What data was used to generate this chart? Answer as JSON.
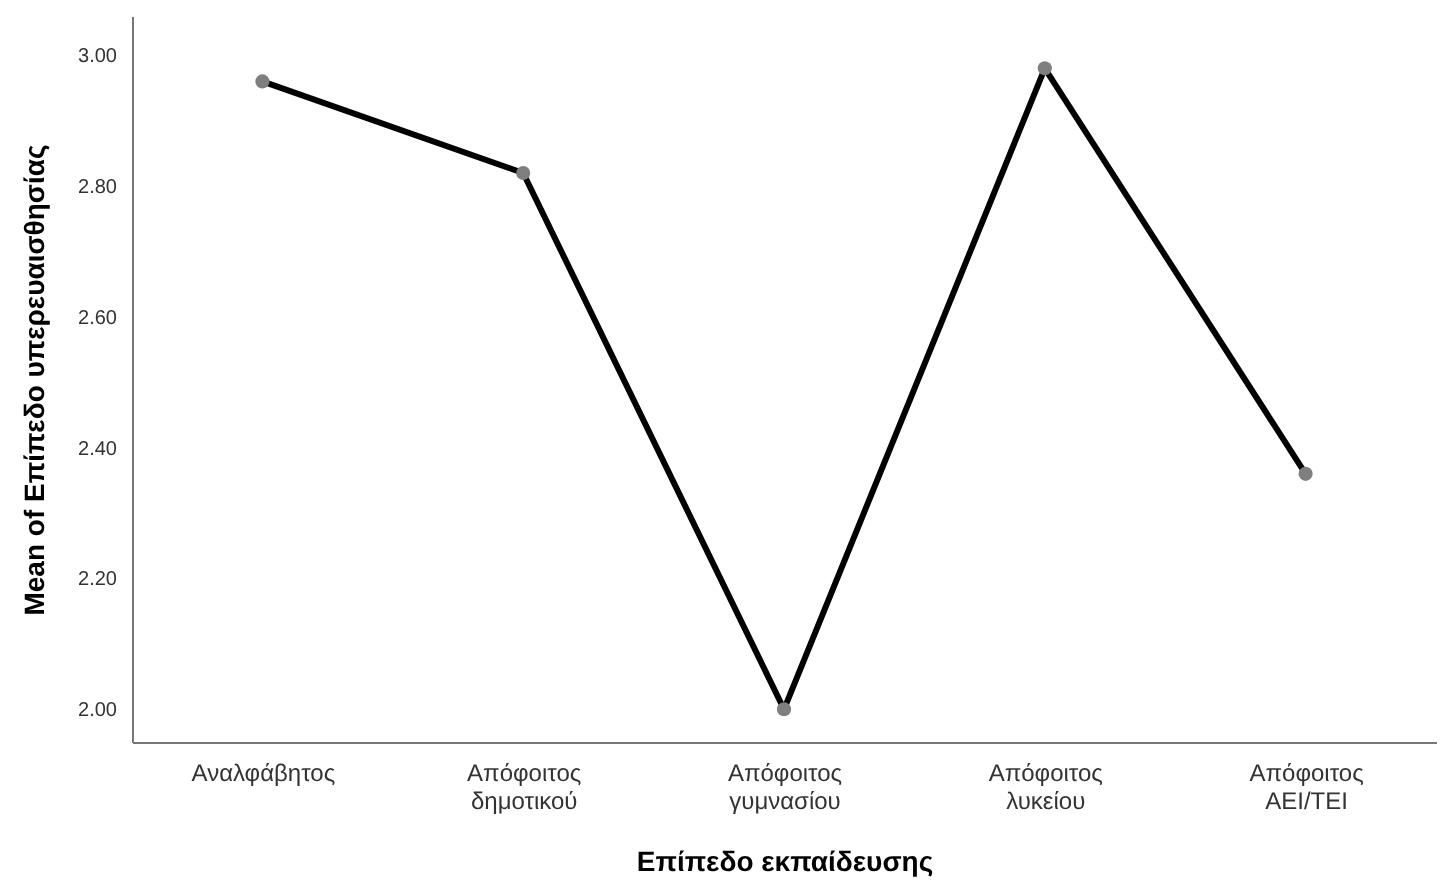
{
  "chart_data": {
    "type": "line",
    "xlabel": "Επίπεδο εκπαίδευσης",
    "ylabel": "Mean of Επίπεδο υπερευαισθησίας",
    "categories": [
      "Αναλφάβητος",
      "Απόφοιτος\nδημοτικού",
      "Απόφοιτος\nγυμνασίου",
      "Απόφοιτος\nλυκείου",
      "Απόφοιτος\nΑΕΙ/ΤΕΙ"
    ],
    "series": [
      {
        "color": "#000000",
        "values": [
          2.96,
          2.82,
          2.0,
          2.98,
          2.36
        ]
      }
    ],
    "ylim": [
      1.95,
      3.06
    ],
    "yticks": [
      {
        "value": 2.0,
        "label": "2.00"
      },
      {
        "value": 2.2,
        "label": "2.20"
      },
      {
        "value": 2.4,
        "label": "2.40"
      },
      {
        "value": 2.6,
        "label": "2.60"
      },
      {
        "value": 2.8,
        "label": "2.80"
      },
      {
        "value": 3.0,
        "label": "3.00"
      }
    ],
    "marker": "circle",
    "grid": false
  }
}
